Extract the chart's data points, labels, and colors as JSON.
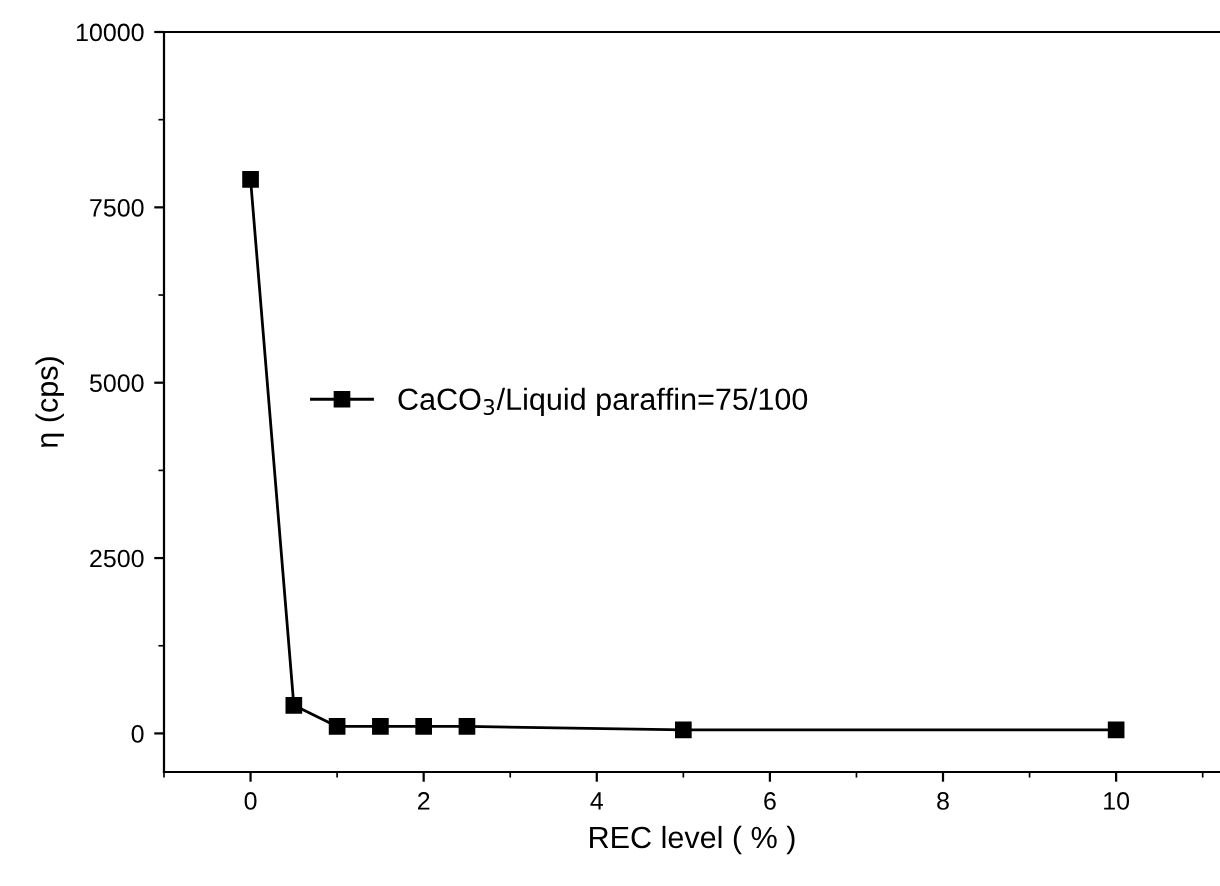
{
  "chart_data": {
    "type": "line",
    "xlabel": "REC level ( % )",
    "ylabel": "η (cps)",
    "x": [
      0,
      0.5,
      1,
      1.5,
      2,
      2.5,
      5,
      10
    ],
    "series": [
      {
        "name": "CaCO$_{3}$/Liquid paraffin=75/100",
        "color": "#000000",
        "values": [
          7900,
          400,
          100,
          100,
          100,
          100,
          50,
          50
        ]
      }
    ],
    "xlim": [
      -1,
      11.2
    ],
    "xticks": [
      0,
      2,
      4,
      6,
      8,
      10
    ],
    "ylim": [
      -550,
      10000
    ],
    "yticks": [
      0,
      2500,
      5000,
      7500,
      10000
    ],
    "marker": "square",
    "line_style": "solid",
    "grid": false,
    "legend": "center"
  }
}
